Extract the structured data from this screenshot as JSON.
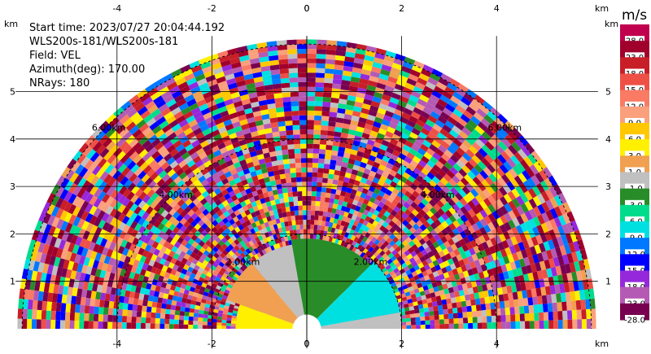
{
  "info": {
    "start_time": "Start time: 2023/07/27 20:04:44.192",
    "station": "WLS200s-181/WLS200s-181",
    "field": "Field: VEL",
    "azimuth": "Azimuth(deg): 170.00",
    "nrays": "NRays: 180"
  },
  "axis_unit": "km",
  "colorbar": {
    "unit": "m/s",
    "labels": [
      "28.0",
      "23.0",
      "18.0",
      "15.0",
      "12.0",
      "9.0",
      "6.0",
      "3.0",
      "1.0",
      "-1.0",
      "-3.0",
      "-6.0",
      "-9.0",
      "-12.0",
      "-15.0",
      "-18.0",
      "-23.0",
      "-28.0"
    ],
    "colors": [
      "#c0004e",
      "#a0002b",
      "#c81e28",
      "#ee5046",
      "#fa7a64",
      "#faa07c",
      "#ffc800",
      "#fff000",
      "#f0a050",
      "#c0c0c0",
      "#288c28",
      "#00dc8c",
      "#00e0e0",
      "#0078ff",
      "#0000ff",
      "#9628dc",
      "#b45ab4",
      "#780050"
    ]
  },
  "chart_data": {
    "type": "heatmap",
    "title": "",
    "xlabel": "km",
    "ylabel": "km",
    "xlim": [
      -6,
      6
    ],
    "ylim": [
      0,
      6
    ],
    "x_ticks": [
      -4,
      -2,
      0,
      2,
      4
    ],
    "y_ticks": [
      1,
      2,
      3,
      4,
      5
    ],
    "range_rings_km": [
      2,
      4,
      6
    ],
    "range_ring_labels": [
      "2.00km",
      "4.00km",
      "6.00km"
    ],
    "max_range_km": 6,
    "azimuth_span_deg": [
      0,
      180
    ],
    "value_unit": "m/s",
    "value_range": [
      -28,
      28
    ],
    "near_field_sectors": [
      {
        "angle_deg": [
          0,
          10
        ],
        "radius_km": [
          0.3,
          2.0
        ],
        "value": -1.0
      },
      {
        "angle_deg": [
          10,
          45
        ],
        "radius_km": [
          0.3,
          2.0
        ],
        "value": -7.0
      },
      {
        "angle_deg": [
          45,
          100
        ],
        "radius_km": [
          0.3,
          1.9
        ],
        "value": -3.0
      },
      {
        "angle_deg": [
          100,
          130
        ],
        "radius_km": [
          0.3,
          1.8
        ],
        "value": -0.5
      },
      {
        "angle_deg": [
          130,
          160
        ],
        "radius_km": [
          0.3,
          1.8
        ],
        "value": 2.5
      },
      {
        "angle_deg": [
          160,
          180
        ],
        "radius_km": [
          0.3,
          1.5
        ],
        "value": 5.0
      }
    ]
  }
}
